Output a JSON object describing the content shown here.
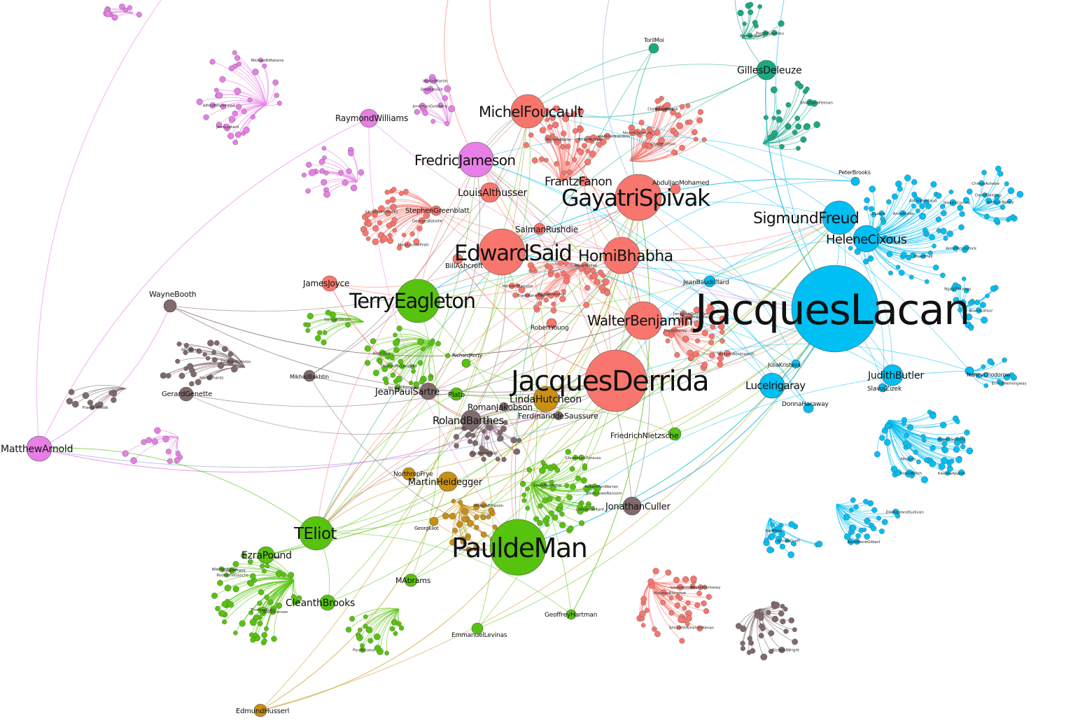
{
  "graph": {
    "communities": [
      {
        "id": "psychoanalysis",
        "color": "#00bff3"
      },
      {
        "id": "postcolonial",
        "color": "#f8766d"
      },
      {
        "id": "marxist",
        "color": "#e77fe6"
      },
      {
        "id": "newcriticism",
        "color": "#58c30e"
      },
      {
        "id": "phenomenology",
        "color": "#c99014"
      },
      {
        "id": "deleuze",
        "color": "#1aaa82"
      },
      {
        "id": "structuralism",
        "color": "#7f6a6c"
      }
    ],
    "nodes": [
      {
        "id": "lacan",
        "label": "JacquesLacan",
        "community": "psychoanalysis",
        "major": true
      },
      {
        "id": "derrida",
        "label": "JacquesDerrida",
        "community": "postcolonial",
        "major": true
      },
      {
        "id": "demen",
        "label": "PauldeMan",
        "community": "newcriticism",
        "major": true
      },
      {
        "id": "spivak",
        "label": "GayatriSpivak",
        "community": "postcolonial",
        "major": true
      },
      {
        "id": "said",
        "label": "EdwardSaid",
        "community": "postcolonial",
        "major": true
      },
      {
        "id": "eagleton",
        "label": "TerryEagleton",
        "community": "newcriticism",
        "major": true
      },
      {
        "id": "freud",
        "label": "SigmundFreud",
        "community": "psychoanalysis",
        "major": true
      },
      {
        "id": "cixous",
        "label": "HeleneCixous",
        "community": "psychoanalysis",
        "major": true
      },
      {
        "id": "foucault",
        "label": "MichelFoucault",
        "community": "postcolonial",
        "major": true
      },
      {
        "id": "jameson",
        "label": "FredricJameson",
        "community": "marxist",
        "major": true
      },
      {
        "id": "bhabha",
        "label": "HomiBhabha",
        "community": "postcolonial",
        "major": true
      },
      {
        "id": "benjamin",
        "label": "WalterBenjamin",
        "community": "postcolonial",
        "major": true
      },
      {
        "id": "eliot",
        "label": "TEliot",
        "community": "newcriticism",
        "major": true
      },
      {
        "id": "fanon",
        "label": "FrantzFanon",
        "community": "postcolonial",
        "major": true
      },
      {
        "id": "irigaray",
        "label": "LuceIrigaray",
        "community": "psychoanalysis",
        "major": true
      },
      {
        "id": "butler",
        "label": "JudithButler",
        "community": "psychoanalysis",
        "major": true
      },
      {
        "id": "deleuze",
        "label": "GillesDeleuze",
        "community": "deleuze",
        "major": true
      },
      {
        "id": "arnold",
        "label": "MatthewArnold",
        "community": "marxist",
        "major": true
      },
      {
        "id": "hutcheon",
        "label": "LindaHutcheon",
        "community": "phenomenology",
        "major": true
      },
      {
        "id": "barthes",
        "label": "RolandBarthes",
        "community": "structuralism",
        "major": true
      },
      {
        "id": "heidegger",
        "label": "MartinHeidegger",
        "community": "phenomenology",
        "major": true
      },
      {
        "id": "sartre",
        "label": "JeanPaulSartre",
        "community": "structuralism",
        "major": true
      },
      {
        "id": "althusser",
        "label": "LouisAlthusser",
        "community": "postcolonial",
        "major": true
      },
      {
        "id": "williams",
        "label": "RaymondWilliams",
        "community": "marxist",
        "major": true
      },
      {
        "id": "culler",
        "label": "JonathanCuller",
        "community": "structuralism",
        "major": true
      },
      {
        "id": "pound",
        "label": "EzraPound",
        "community": "newcriticism",
        "major": true
      },
      {
        "id": "brooks",
        "label": "CleanthBrooks",
        "community": "newcriticism",
        "major": true
      },
      {
        "id": "joyce",
        "label": "JamesJoyce",
        "community": "postcolonial",
        "major": true
      },
      {
        "id": "booth",
        "label": "WayneBooth",
        "community": "structuralism",
        "major": true
      },
      {
        "id": "nietzsche",
        "label": "FriedrichNietzsche",
        "community": "newcriticism",
        "major": true
      },
      {
        "id": "abrams",
        "label": "MAbrams",
        "community": "newcriticism",
        "major": true
      },
      {
        "id": "hartman",
        "label": "GeoffreyHartman",
        "community": "newcriticism",
        "major": true
      },
      {
        "id": "levinas",
        "label": "EmmanuelLevinas",
        "community": "newcriticism",
        "major": true
      },
      {
        "id": "husserl",
        "label": "EdmundHusserl",
        "community": "phenomenology",
        "major": true
      },
      {
        "id": "jakobson",
        "label": "RomanJakobson",
        "community": "structuralism",
        "major": true
      },
      {
        "id": "saussure",
        "label": "FerdinanddeSaussure",
        "community": "structuralism",
        "major": true
      },
      {
        "id": "rushdie",
        "label": "SalmanRushdie",
        "community": "postcolonial",
        "major": true
      },
      {
        "id": "plato",
        "label": "Plato",
        "community": "newcriticism",
        "major": true
      },
      {
        "id": "frye",
        "label": "NorthropFrye",
        "community": "phenomenology",
        "major": true
      },
      {
        "id": "ashcroft",
        "label": "BillAshcroft",
        "community": "postcolonial",
        "major": true
      },
      {
        "id": "young",
        "label": "RobertYoung",
        "community": "postcolonial",
        "major": true
      },
      {
        "id": "greenblatt",
        "label": "StephenGreenblatt",
        "community": "postcolonial",
        "major": true
      },
      {
        "id": "mohamed",
        "label": "AbdulJanMohamed",
        "community": "postcolonial",
        "major": true
      },
      {
        "id": "baudrillard",
        "label": "JeanBaudrillard",
        "community": "psychoanalysis",
        "major": true
      },
      {
        "id": "haraway",
        "label": "DonnaHaraway",
        "community": "psychoanalysis",
        "major": true
      },
      {
        "id": "zizek",
        "label": "SlavojZizek",
        "community": "psychoanalysis",
        "major": true
      },
      {
        "id": "kristeva",
        "label": "JuliaKristeva",
        "community": "psychoanalysis",
        "major": true
      },
      {
        "id": "brooksp",
        "label": "PeterBrooks",
        "community": "psychoanalysis",
        "major": true
      },
      {
        "id": "nancy",
        "label": "NancyChodorow",
        "community": "psychoanalysis",
        "major": true
      },
      {
        "id": "genette",
        "label": "GerardGenette",
        "community": "structuralism",
        "major": true
      },
      {
        "id": "bakhtin",
        "label": "MikhailBakhtin",
        "community": "structuralism",
        "major": true
      },
      {
        "id": "mohr",
        "label": "TorilMoi",
        "community": "deleuze",
        "major": true
      },
      {
        "id": "rorty",
        "label": "RichardRorty",
        "community": "newcriticism",
        "major": true
      },
      {
        "id": "eliotm",
        "label": "GeorgEliot",
        "community": "phenomenology",
        "major": true
      }
    ],
    "minor_labels": [
      "CLewis",
      "StevenConnor",
      "DavidDaiches",
      "VictorErlich",
      "RobertScholes",
      "ErnestHemingway",
      "GeraldGraff",
      "RichardRorty",
      "CharlesOlson",
      "BrianMcHale",
      "ChristopherRicks",
      "FrankKermode",
      "RenéWellek",
      "FrankDavey",
      "MauriceBlanchot",
      "AlfredWhitehead",
      "StephenGill",
      "ThomasKuhn",
      "RodolpheGasche",
      "PaulRicoeur",
      "ImmanuelKant",
      "ThomasMcLaughlin",
      "SamuelWeber",
      "TzvetanTodorov",
      "FrancesWebb",
      "CatherineHall",
      "AnneMcClintock",
      "StuartHall",
      "ChinuaAchebe",
      "KwameAppiah",
      "NgugiThiongo",
      "BartMooreGilbert",
      "KarlMarx",
      "PierreBourdieu",
      "NoamChomsky",
      "RichardRorty",
      "MaryLouisePratt",
      "HerbertMarcuse",
      "TheodorAdorno",
      "JonathanDollimore",
      "PierreMacherey",
      "JeanLyotard",
      "JonathanGoldberg",
      "AlanSinfield",
      "RoySorenson",
      "LouisMontrose",
      "ClaudeLeviStrauss",
      "JacquesRanciere",
      "EtienneBalibar",
      "WDuBois",
      "RichardWright",
      "JosephConrad",
      "AntoninArtaud",
      "AnneMellor",
      "JeanLucNancy",
      "NHayes",
      "BrunoLatour",
      "ElleRaglandSullivan",
      "ShoshanaFelman",
      "BruceFink",
      "ClaireColebrook",
      "VladimirNabokov",
      "GeorgesBataille",
      "MichaelWarner",
      "WilliamWordsworth",
      "LindaWilliams",
      "ShlomithRimmonKenan",
      "MichaelRiffaterre",
      "WalterMartin",
      "WaltWhitman",
      "JosephFrank",
      "RobertPenWarren",
      "JohnCroweRansom",
      "AllenTate",
      "WilliamEmpson",
      "IvorRichards"
    ]
  }
}
